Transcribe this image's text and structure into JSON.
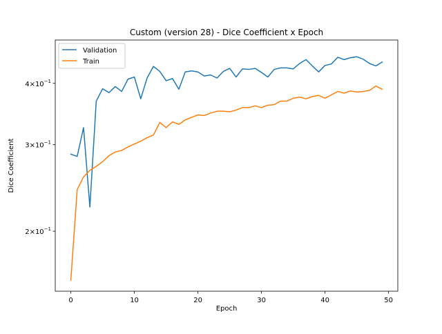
{
  "chart_data": {
    "type": "line",
    "title": "Custom (version 28) - Dice Coefficient x Epoch",
    "xlabel": "Epoch",
    "ylabel": "Dice Coefficient",
    "xlim": [
      -2.45,
      51.45
    ],
    "ylim": [
      0.151,
      0.49
    ],
    "yscale": "log",
    "grid": false,
    "legend_position": "top-left",
    "x_ticks": [
      0,
      10,
      20,
      30,
      40,
      50
    ],
    "x_tick_labels": [
      "0",
      "10",
      "20",
      "30",
      "40",
      "50"
    ],
    "y_ticks": [
      0.2,
      0.3,
      0.4
    ],
    "y_tick_labels": [
      {
        "base": "2×10",
        "exp": "−1"
      },
      {
        "base": "3×10",
        "exp": "−1"
      },
      {
        "base": "4×10",
        "exp": "−1"
      }
    ],
    "x": [
      0,
      1,
      2,
      3,
      4,
      5,
      6,
      7,
      8,
      9,
      10,
      11,
      12,
      13,
      14,
      15,
      16,
      17,
      18,
      19,
      20,
      21,
      22,
      23,
      24,
      25,
      26,
      27,
      28,
      29,
      30,
      31,
      32,
      33,
      34,
      35,
      36,
      37,
      38,
      39,
      40,
      41,
      42,
      43,
      44,
      45,
      46,
      47,
      48,
      49
    ],
    "series": [
      {
        "name": "Validation",
        "color": "#1f77b4",
        "values": [
          0.287,
          0.284,
          0.325,
          0.224,
          0.368,
          0.39,
          0.383,
          0.394,
          0.385,
          0.408,
          0.412,
          0.372,
          0.41,
          0.433,
          0.423,
          0.405,
          0.409,
          0.389,
          0.422,
          0.424,
          0.422,
          0.414,
          0.416,
          0.41,
          0.423,
          0.429,
          0.412,
          0.428,
          0.427,
          0.429,
          0.421,
          0.412,
          0.427,
          0.43,
          0.43,
          0.428,
          0.439,
          0.447,
          0.434,
          0.422,
          0.435,
          0.438,
          0.452,
          0.447,
          0.451,
          0.453,
          0.448,
          0.439,
          0.434,
          0.442
        ]
      },
      {
        "name": "Train",
        "color": "#ff7f0e",
        "values": [
          0.159,
          0.243,
          0.258,
          0.266,
          0.271,
          0.277,
          0.285,
          0.29,
          0.292,
          0.297,
          0.301,
          0.305,
          0.31,
          0.314,
          0.333,
          0.325,
          0.334,
          0.33,
          0.337,
          0.341,
          0.345,
          0.344,
          0.348,
          0.351,
          0.351,
          0.35,
          0.353,
          0.357,
          0.357,
          0.36,
          0.357,
          0.361,
          0.362,
          0.368,
          0.368,
          0.373,
          0.375,
          0.372,
          0.376,
          0.378,
          0.373,
          0.379,
          0.385,
          0.382,
          0.386,
          0.384,
          0.385,
          0.387,
          0.395,
          0.389
        ]
      }
    ]
  }
}
